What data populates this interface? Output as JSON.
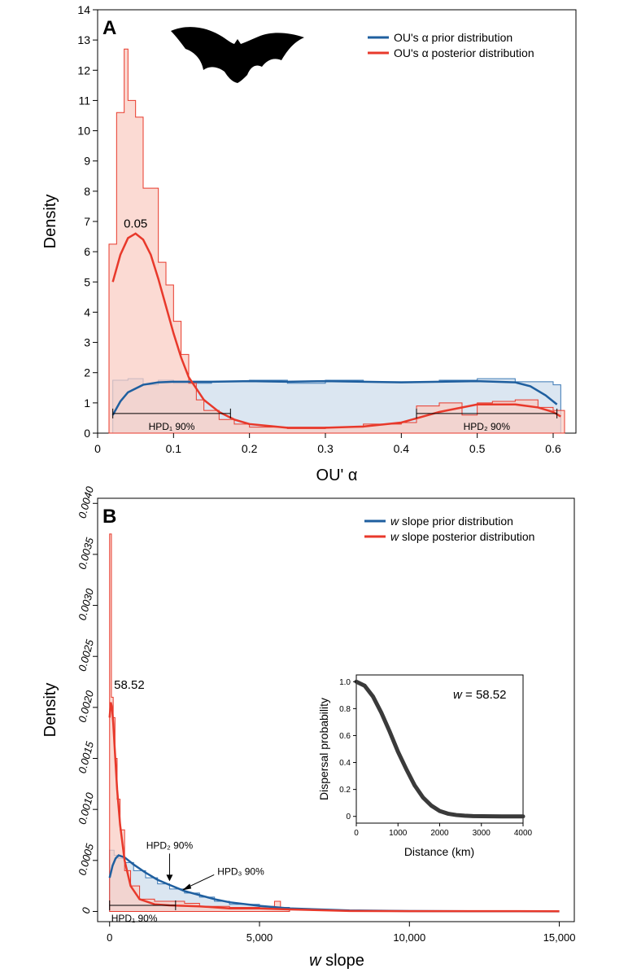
{
  "colors": {
    "prior_line": "#1f5f9f",
    "prior_fill": "#dbe6f1",
    "prior_hist": "#3a78b5",
    "posterior_line": "#e8392b",
    "posterior_fill": "#f9cdc4",
    "posterior_hist": "#e8392b",
    "overlap_fill": "#d2b8bd",
    "axis": "#000000",
    "inset_curve": "#3a3a3a"
  },
  "chart_data": [
    {
      "panel": "A",
      "type": "area",
      "xlabel": "OU' α",
      "ylabel": "Density",
      "xlim": [
        0,
        0.63
      ],
      "ylim": [
        0,
        14
      ],
      "x_ticks": [
        0,
        0.1,
        0.2,
        0.3,
        0.4,
        0.5,
        0.6
      ],
      "x_tick_labels": [
        "0",
        "0.1",
        "0.2",
        "0.3",
        "0.4",
        "0.5",
        "0.6"
      ],
      "y_ticks": [
        0,
        1,
        2,
        3,
        4,
        5,
        6,
        7,
        8,
        9,
        10,
        11,
        12,
        13,
        14
      ],
      "y_tick_labels": [
        "0",
        "1",
        "2",
        "3",
        "4",
        "5",
        "6",
        "7",
        "8",
        "9",
        "10",
        "11",
        "12",
        "13",
        "14"
      ],
      "legend_position": "top-right",
      "series": [
        {
          "name": "OU's α prior distribution",
          "role": "prior",
          "curve": {
            "x": [
              0.02,
              0.03,
              0.04,
              0.06,
              0.08,
              0.1,
              0.15,
              0.2,
              0.25,
              0.3,
              0.35,
              0.4,
              0.45,
              0.5,
              0.55,
              0.57,
              0.59,
              0.605
            ],
            "y": [
              0.6,
              1.05,
              1.35,
              1.6,
              1.68,
              1.7,
              1.7,
              1.72,
              1.7,
              1.72,
              1.7,
              1.68,
              1.7,
              1.72,
              1.68,
              1.55,
              1.25,
              0.95
            ]
          },
          "histogram": {
            "edges": [
              0.02,
              0.04,
              0.06,
              0.08,
              0.1,
              0.15,
              0.2,
              0.25,
              0.3,
              0.35,
              0.4,
              0.45,
              0.5,
              0.55,
              0.6,
              0.61
            ],
            "density": [
              1.75,
              1.8,
              1.6,
              1.75,
              1.65,
              1.7,
              1.75,
              1.65,
              1.75,
              1.7,
              1.7,
              1.75,
              1.8,
              1.7,
              1.6
            ]
          }
        },
        {
          "name": "OU's α posterior distribution",
          "role": "posterior",
          "curve": {
            "x": [
              0.02,
              0.03,
              0.04,
              0.05,
              0.06,
              0.07,
              0.08,
              0.09,
              0.1,
              0.11,
              0.12,
              0.14,
              0.16,
              0.18,
              0.2,
              0.25,
              0.3,
              0.35,
              0.4,
              0.45,
              0.5,
              0.55,
              0.58,
              0.6,
              0.61
            ],
            "y": [
              5.0,
              5.9,
              6.45,
              6.6,
              6.4,
              5.9,
              5.1,
              4.2,
              3.3,
              2.5,
              1.85,
              1.1,
              0.7,
              0.45,
              0.3,
              0.18,
              0.18,
              0.22,
              0.35,
              0.7,
              0.95,
              0.95,
              0.85,
              0.7,
              0.55
            ]
          },
          "histogram": {
            "edges": [
              0.015,
              0.025,
              0.035,
              0.04,
              0.05,
              0.06,
              0.08,
              0.09,
              0.1,
              0.11,
              0.12,
              0.13,
              0.14,
              0.16,
              0.18,
              0.2,
              0.25,
              0.3,
              0.35,
              0.4,
              0.42,
              0.45,
              0.48,
              0.5,
              0.52,
              0.55,
              0.58,
              0.6,
              0.615
            ],
            "density": [
              6.25,
              10.6,
              12.7,
              11.0,
              10.45,
              8.1,
              5.65,
              4.9,
              3.7,
              2.6,
              1.65,
              1.1,
              0.75,
              0.45,
              0.3,
              0.2,
              0.15,
              0.2,
              0.3,
              0.35,
              0.9,
              1.0,
              0.6,
              1.0,
              1.05,
              1.1,
              0.85,
              0.75
            ]
          }
        }
      ],
      "annotations": [
        {
          "text": "0.05",
          "x": 0.05,
          "y": 6.8
        },
        {
          "text": "HPD₁ 90%",
          "x": [
            0.02,
            0.175
          ],
          "y": 0.65
        },
        {
          "text": "HPD₂ 90%",
          "x": [
            0.42,
            0.605
          ],
          "y": 0.65
        }
      ],
      "panel_label": "A",
      "silhouette": "bat-icon"
    },
    {
      "panel": "B",
      "type": "area",
      "xlabel": "w slope",
      "ylabel": "Density",
      "xlim": [
        -400,
        15500
      ],
      "ylim": [
        -0.0001,
        0.00405
      ],
      "x_ticks": [
        0,
        5000,
        10000,
        15000
      ],
      "x_tick_labels": [
        "0",
        "5,000",
        "10,000",
        "15,000"
      ],
      "y_ticks": [
        0,
        0.0005,
        0.001,
        0.0015,
        0.002,
        0.0025,
        0.003,
        0.0035,
        0.004
      ],
      "y_tick_labels": [
        "0",
        "0.0005",
        "0.0010",
        "0.0015",
        "0.0020",
        "0.0025",
        "0.0030",
        "0.0035",
        "0.0040"
      ],
      "legend_position": "top-right",
      "series": [
        {
          "name": "w slope prior distribution",
          "role": "prior",
          "curve": {
            "x": [
              0,
              100,
              200,
              300,
              500,
              800,
              1200,
              1600,
              2000,
              2500,
              3000,
              3500,
              4000,
              5000,
              6000,
              8000,
              10000,
              12000,
              15000
            ],
            "y": [
              0.00033,
              0.00045,
              0.00052,
              0.00055,
              0.00053,
              0.00046,
              0.00038,
              0.00031,
              0.00026,
              0.0002,
              0.00016,
              0.00012,
              9e-05,
              5.5e-05,
              3e-05,
              1e-05,
              4e-06,
              2e-06,
              1e-06
            ]
          },
          "histogram": {
            "edges": [
              0,
              150,
              300,
              500,
              800,
              1200,
              1600,
              2000,
              2500,
              3000,
              3500,
              4000,
              5000,
              6000
            ],
            "density": [
              0.0006,
              0.00055,
              0.00052,
              0.00048,
              0.0004,
              0.00033,
              0.00027,
              0.00022,
              0.00018,
              0.00014,
              0.0001,
              7e-05,
              4e-05
            ]
          }
        },
        {
          "name": "w slope posterior distribution",
          "role": "posterior",
          "curve": {
            "x": [
              0,
              40,
              80,
              120,
              180,
              250,
              350,
              500,
              700,
              1000,
              1500,
              2000,
              3000,
              4000,
              5000,
              6000,
              8000,
              10000,
              15000
            ],
            "y": [
              0.0019,
              0.00205,
              0.002,
              0.00185,
              0.00155,
              0.0012,
              0.00085,
              0.0005,
              0.00025,
              0.00012,
              7e-05,
              6e-05,
              5e-05,
              3e-05,
              3e-05,
              2e-05,
              5e-06,
              3e-06,
              2e-06
            ]
          },
          "histogram": {
            "edges": [
              0,
              60,
              120,
              180,
              250,
              350,
              500,
              700,
              1000,
              1500,
              2000,
              2500,
              3000,
              4000,
              5000,
              5500,
              5700,
              6000
            ],
            "density": [
              0.0037,
              0.0021,
              0.0019,
              0.0015,
              0.0011,
              0.0008,
              0.0004,
              0.00025,
              0.00012,
              0.0001,
              0.0001,
              8e-05,
              5e-05,
              4e-05,
              5e-05,
              0.0001,
              2e-05
            ]
          }
        }
      ],
      "annotations": [
        {
          "text": "58.52",
          "x": 58.52,
          "y": 0.00215
        },
        {
          "text": "HPD₁ 90%",
          "x": [
            0,
            2200
          ],
          "y": 6e-05
        },
        {
          "text": "HPD₂ 90%",
          "x": 2000,
          "y": 0.00028
        },
        {
          "text": "HPD₃ 90%",
          "x": 2400,
          "y": 0.0002
        }
      ],
      "panel_label": "B",
      "inset": {
        "type": "line",
        "xlabel": "Distance (km)",
        "ylabel": "Dispersal probability",
        "xlim": [
          0,
          4000
        ],
        "ylim": [
          -0.05,
          1.05
        ],
        "x_ticks": [
          0,
          1000,
          2000,
          3000,
          4000
        ],
        "x_tick_labels": [
          "0",
          "1000",
          "2000",
          "3000",
          "4000"
        ],
        "y_ticks": [
          0,
          0.2,
          0.4,
          0.6,
          0.8,
          1.0
        ],
        "y_tick_labels": [
          "0",
          "0.2",
          "0.4",
          "0.6",
          "0.8",
          "1.0"
        ],
        "label_w": "w",
        "label_rest": " = 58.52",
        "x": [
          0,
          200,
          400,
          600,
          800,
          1000,
          1200,
          1400,
          1600,
          1800,
          2000,
          2200,
          2400,
          2600,
          2800,
          3000,
          3500,
          4000
        ],
        "y": [
          1.0,
          0.97,
          0.89,
          0.77,
          0.63,
          0.48,
          0.35,
          0.23,
          0.14,
          0.08,
          0.04,
          0.02,
          0.01,
          0.005,
          0.002,
          0.001,
          0.0,
          0.0
        ]
      }
    }
  ]
}
